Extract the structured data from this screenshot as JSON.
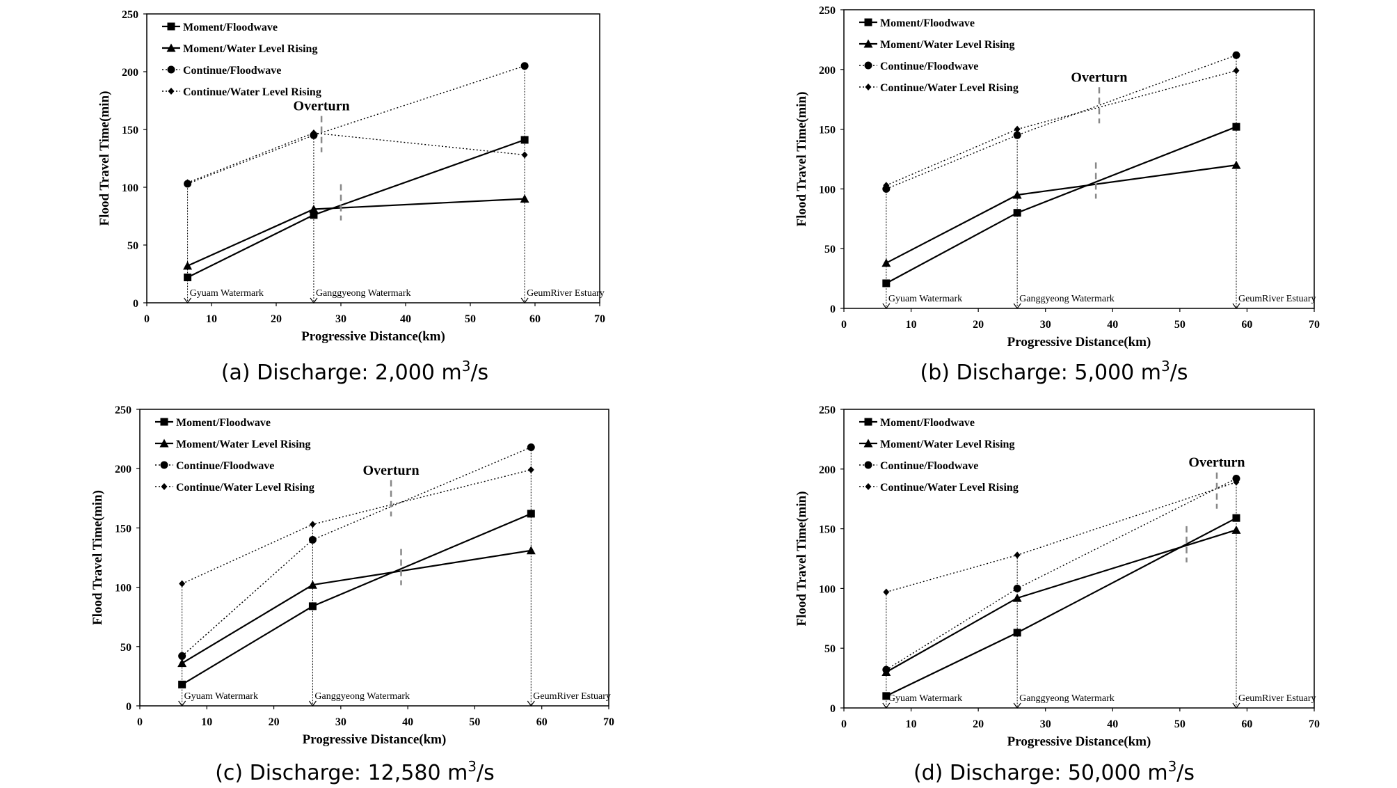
{
  "chart_data": [
    {
      "id": "a",
      "type": "line",
      "caption": {
        "prefix": "(a) Discharge: 2,000 m",
        "sup": "3",
        "suffix": "/s"
      },
      "xlabel": "Progressive Distance(km)",
      "ylabel": "Flood Travel Time(min)",
      "xlim": [
        0,
        70
      ],
      "ylim": [
        0,
        250
      ],
      "xticks": [
        "0",
        "10",
        "20",
        "30",
        "40",
        "50",
        "60",
        "70"
      ],
      "yticks": [
        "0",
        "50",
        "100",
        "150",
        "200",
        "250"
      ],
      "x": [
        6.3,
        25.8,
        58.4
      ],
      "series": [
        {
          "name": "Moment/Floodwave",
          "values": [
            22,
            76,
            141
          ],
          "style": "solid",
          "marker": "square"
        },
        {
          "name": "Moment/Water Level Rising",
          "values": [
            32,
            81,
            90
          ],
          "style": "solid",
          "marker": "triangle"
        },
        {
          "name": "Continue/Floodwave",
          "values": [
            103,
            145,
            205
          ],
          "style": "dotted",
          "marker": "circle"
        },
        {
          "name": "Continue/Water Level Rising",
          "values": [
            104,
            147,
            128
          ],
          "style": "dotted",
          "marker": "diamond"
        }
      ],
      "stations": [
        {
          "x": 6.3,
          "label": "Gyuam  Watermark"
        },
        {
          "x": 25.8,
          "label": "Ganggyeong  Watermark"
        },
        {
          "x": 58.4,
          "label": "GeumRiver  Estuary"
        }
      ],
      "overturn": {
        "text": "Overturn",
        "x": 27,
        "y": 146
      },
      "crossings": [
        {
          "x": 27,
          "y": 146
        },
        {
          "x": 30,
          "y": 87
        }
      ]
    },
    {
      "id": "b",
      "type": "line",
      "caption": {
        "prefix": "(b) Discharge: 5,000 m",
        "sup": "3",
        "suffix": "/s"
      },
      "xlabel": "Progressive Distance(km)",
      "ylabel": "Flood Travel Time(min)",
      "xlim": [
        0,
        70
      ],
      "ylim": [
        0,
        250
      ],
      "xticks": [
        "0",
        "10",
        "20",
        "30",
        "40",
        "50",
        "60",
        "70"
      ],
      "yticks": [
        "0",
        "50",
        "100",
        "150",
        "200",
        "250"
      ],
      "x": [
        6.3,
        25.8,
        58.4
      ],
      "series": [
        {
          "name": "Moment/Floodwave",
          "values": [
            21,
            80,
            152
          ],
          "style": "solid",
          "marker": "square"
        },
        {
          "name": "Moment/Water Level Rising",
          "values": [
            38,
            95,
            120
          ],
          "style": "solid",
          "marker": "triangle"
        },
        {
          "name": "Continue/Floodwave",
          "values": [
            100,
            145,
            212
          ],
          "style": "dotted",
          "marker": "circle"
        },
        {
          "name": "Continue/Water Level Rising",
          "values": [
            103,
            150,
            199
          ],
          "style": "dotted",
          "marker": "diamond"
        }
      ],
      "stations": [
        {
          "x": 6.3,
          "label": "Gyuam  Watermark"
        },
        {
          "x": 25.8,
          "label": "Ganggyeong  Watermark"
        },
        {
          "x": 58.4,
          "label": "GeumRiver  Estuary"
        }
      ],
      "overturn": {
        "text": "Overturn",
        "x": 38,
        "y": 170
      },
      "crossings": [
        {
          "x": 38,
          "y": 170
        },
        {
          "x": 37.5,
          "y": 107
        }
      ]
    },
    {
      "id": "c",
      "type": "line",
      "caption": {
        "prefix": "(c) Discharge: 12,580 m",
        "sup": "3",
        "suffix": "/s"
      },
      "xlabel": "Progressive Distance(km)",
      "ylabel": "Flood Travel Time(min)",
      "xlim": [
        0,
        70
      ],
      "ylim": [
        0,
        250
      ],
      "xticks": [
        "0",
        "10",
        "20",
        "30",
        "40",
        "50",
        "60",
        "70"
      ],
      "yticks": [
        "0",
        "50",
        "100",
        "150",
        "200",
        "250"
      ],
      "x": [
        6.3,
        25.8,
        58.4
      ],
      "series": [
        {
          "name": "Moment/Floodwave",
          "values": [
            18,
            84,
            162
          ],
          "style": "solid",
          "marker": "square"
        },
        {
          "name": "Moment/Water Level Rising",
          "values": [
            36,
            102,
            131
          ],
          "style": "solid",
          "marker": "triangle"
        },
        {
          "name": "Continue/Floodwave",
          "values": [
            42,
            140,
            218
          ],
          "style": "dotted",
          "marker": "circle"
        },
        {
          "name": "Continue/Water Level Rising",
          "values": [
            103,
            153,
            199
          ],
          "style": "dotted",
          "marker": "diamond"
        }
      ],
      "stations": [
        {
          "x": 6.3,
          "label": "Gyuam  Watermark"
        },
        {
          "x": 25.8,
          "label": "Ganggyeong  Watermark"
        },
        {
          "x": 58.4,
          "label": "GeumRiver  Estuary"
        }
      ],
      "overturn": {
        "text": "Overturn",
        "x": 37.5,
        "y": 175
      },
      "crossings": [
        {
          "x": 37.5,
          "y": 175
        },
        {
          "x": 39,
          "y": 117
        }
      ]
    },
    {
      "id": "d",
      "type": "line",
      "caption": {
        "prefix": "(d) Discharge: 50,000 m",
        "sup": "3",
        "suffix": "/s"
      },
      "xlabel": "Progressive Distance(km)",
      "ylabel": "Flood Travel Time(min)",
      "xlim": [
        0,
        70
      ],
      "ylim": [
        0,
        250
      ],
      "xticks": [
        "0",
        "10",
        "20",
        "30",
        "40",
        "50",
        "60",
        "70"
      ],
      "yticks": [
        "0",
        "50",
        "100",
        "150",
        "200",
        "250"
      ],
      "x": [
        6.3,
        25.8,
        58.4
      ],
      "series": [
        {
          "name": "Moment/Floodwave",
          "values": [
            10,
            63,
            159
          ],
          "style": "solid",
          "marker": "square"
        },
        {
          "name": "Moment/Water Level Rising",
          "values": [
            30,
            92,
            149
          ],
          "style": "solid",
          "marker": "triangle"
        },
        {
          "name": "Continue/Floodwave",
          "values": [
            32,
            100,
            192
          ],
          "style": "dotted",
          "marker": "circle"
        },
        {
          "name": "Continue/Water Level Rising",
          "values": [
            97,
            128,
            189
          ],
          "style": "dotted",
          "marker": "diamond"
        }
      ],
      "stations": [
        {
          "x": 6.3,
          "label": "Gyuam  Watermark"
        },
        {
          "x": 25.8,
          "label": "Ganggyeong  Watermark"
        },
        {
          "x": 58.4,
          "label": "GeumRiver  Estuary"
        }
      ],
      "overturn": {
        "text": "Overturn",
        "x": 55.5,
        "y": 182
      },
      "crossings": [
        {
          "x": 55.5,
          "y": 182
        },
        {
          "x": 51,
          "y": 137
        }
      ]
    }
  ]
}
